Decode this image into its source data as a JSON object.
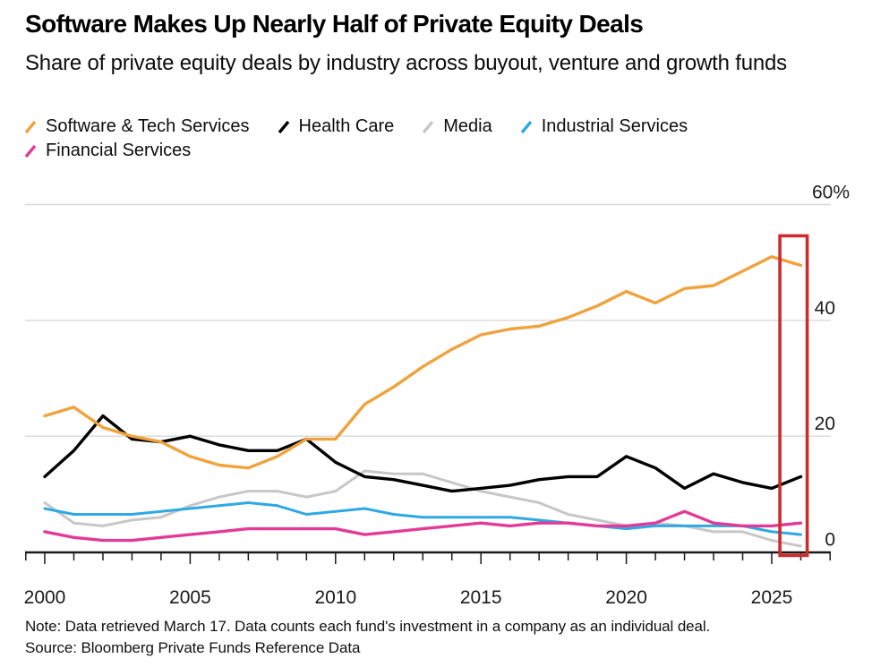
{
  "chart_data": {
    "type": "line",
    "title": "Software Makes Up Nearly Half of Private Equity Deals",
    "subtitle": "Share of private equity deals by industry across buyout, venture and growth funds",
    "x": [
      2000,
      2001,
      2002,
      2003,
      2004,
      2005,
      2006,
      2007,
      2008,
      2009,
      2010,
      2011,
      2012,
      2013,
      2014,
      2015,
      2016,
      2017,
      2018,
      2019,
      2020,
      2021,
      2022,
      2023,
      2024,
      2025,
      2026
    ],
    "series": [
      {
        "name": "Software & Tech Services",
        "color": "#f0a23c",
        "values": [
          23.5,
          25,
          21.5,
          20,
          19,
          16.5,
          15,
          14.5,
          16.5,
          19.5,
          19.5,
          25.5,
          28.5,
          32,
          35,
          37.5,
          38.5,
          39,
          40.5,
          42.5,
          45,
          43,
          45.5,
          46,
          48.5,
          51,
          49.5
        ]
      },
      {
        "name": "Health Care",
        "color": "#000000",
        "values": [
          13,
          17.5,
          23.5,
          19.5,
          19,
          20,
          18.5,
          17.5,
          17.5,
          19.5,
          15.5,
          13,
          12.5,
          11.5,
          10.5,
          11,
          11.5,
          12.5,
          13,
          13,
          16.5,
          14.5,
          11,
          13.5,
          12,
          11,
          13
        ]
      },
      {
        "name": "Media",
        "color": "#c7c7c7",
        "values": [
          8.5,
          5,
          4.5,
          5.5,
          6,
          8,
          9.5,
          10.5,
          10.5,
          9.5,
          10.5,
          14,
          13.5,
          13.5,
          12,
          10.5,
          9.5,
          8.5,
          6.5,
          5.5,
          4.5,
          5,
          4.5,
          3.5,
          3.5,
          2,
          1
        ]
      },
      {
        "name": "Industrial Services",
        "color": "#2fa8e4",
        "values": [
          7.5,
          6.5,
          6.5,
          6.5,
          7,
          7.5,
          8,
          8.5,
          8,
          6.5,
          7,
          7.5,
          6.5,
          6,
          6,
          6,
          6,
          5.5,
          5,
          4.5,
          4,
          4.5,
          4.5,
          4.5,
          4.5,
          3.5,
          3
        ]
      },
      {
        "name": "Financial Services",
        "color": "#e23b97",
        "values": [
          3.5,
          2.5,
          2,
          2,
          2.5,
          3,
          3.5,
          4,
          4,
          4,
          4,
          3,
          3.5,
          4,
          4.5,
          5,
          4.5,
          5,
          5,
          4.5,
          4.5,
          5,
          7,
          5,
          4.5,
          4.5,
          5
        ]
      }
    ],
    "ylim": [
      0,
      60
    ],
    "yticks": [
      {
        "value": 60,
        "label": "60%"
      },
      {
        "value": 40,
        "label": "40"
      },
      {
        "value": 20,
        "label": "20"
      },
      {
        "value": 0,
        "label": "0"
      }
    ],
    "xticks": [
      2000,
      2005,
      2010,
      2015,
      2020,
      2025
    ],
    "x_minor_tick_step": 1,
    "grid": "horizontal",
    "legend_position": "top",
    "highlight_box": {
      "from_year": 2025.28,
      "to_year": 2026.22,
      "from_value": -0.6,
      "to_value": 54.6,
      "color": "#cd2b30"
    }
  },
  "footer": {
    "note": "Note: Data retrieved March 17. Data counts each fund's investment in a company as an individual deal.",
    "source": "Source: Bloomberg Private Funds Reference Data"
  }
}
